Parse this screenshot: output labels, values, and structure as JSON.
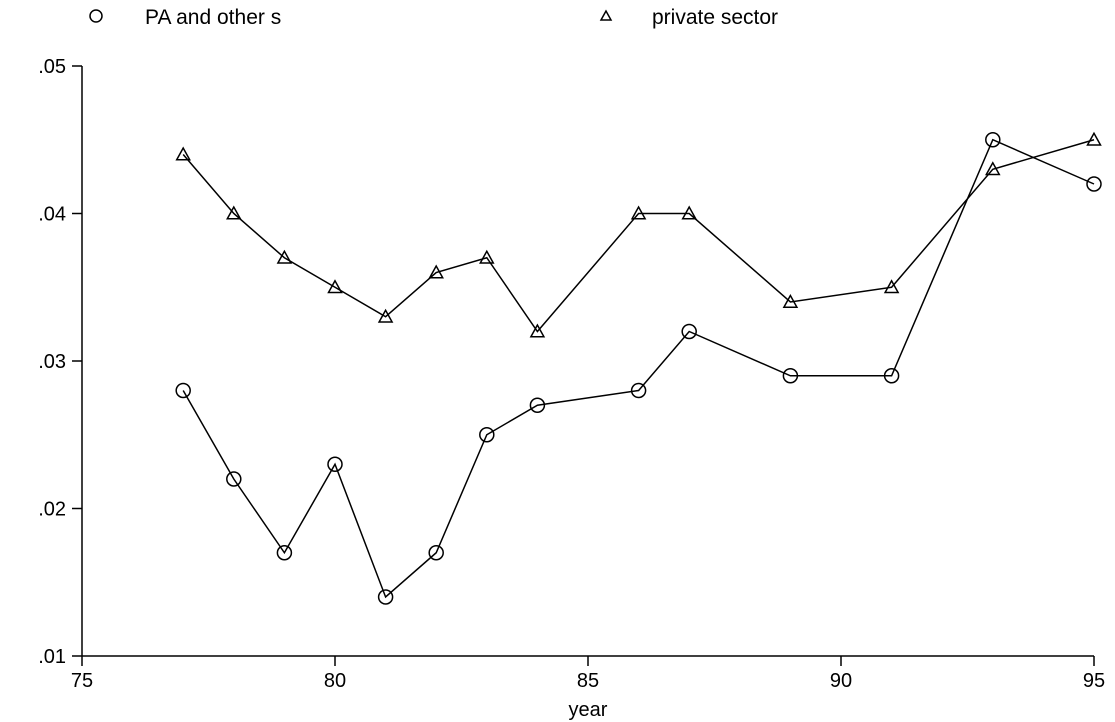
{
  "chart_data": {
    "type": "line",
    "xlabel": "year",
    "ylabel": "",
    "xlim": [
      75,
      95
    ],
    "ylim": [
      0.01,
      0.05
    ],
    "x_ticks": [
      75,
      80,
      85,
      90,
      95
    ],
    "x_tick_labels": [
      "75",
      "80",
      "85",
      "90",
      "95"
    ],
    "y_ticks": [
      0.01,
      0.02,
      0.03,
      0.04,
      0.05
    ],
    "y_tick_labels": [
      ".01",
      ".02",
      ".03",
      ".04",
      ".05"
    ],
    "grid": false,
    "legend_position": "top",
    "series": [
      {
        "name": "PA and other s",
        "marker": "circle",
        "x": [
          77,
          78,
          79,
          80,
          81,
          82,
          83,
          84,
          86,
          87,
          89,
          91,
          93,
          95
        ],
        "y": [
          0.028,
          0.022,
          0.017,
          0.023,
          0.014,
          0.017,
          0.025,
          0.027,
          0.028,
          0.032,
          0.029,
          0.029,
          0.045,
          0.042
        ]
      },
      {
        "name": "private sector",
        "marker": "triangle",
        "x": [
          77,
          78,
          79,
          80,
          81,
          82,
          83,
          84,
          86,
          87,
          89,
          91,
          93,
          95
        ],
        "y": [
          0.044,
          0.04,
          0.037,
          0.035,
          0.033,
          0.036,
          0.037,
          0.032,
          0.04,
          0.04,
          0.034,
          0.035,
          0.043,
          0.045
        ]
      }
    ]
  }
}
